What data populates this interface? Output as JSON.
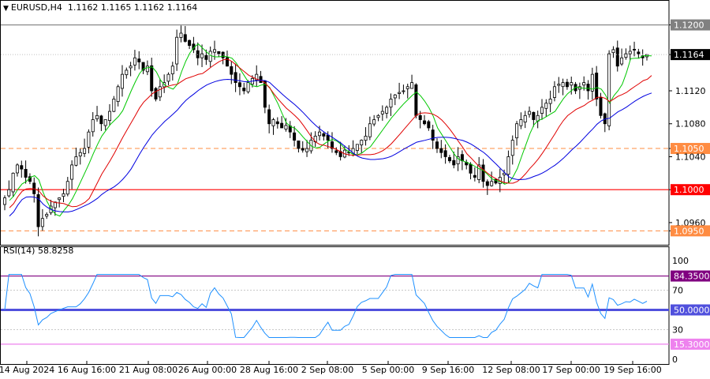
{
  "header": {
    "symbol": "EURUSD,H4",
    "ohlc": "1.1162 1.1165 1.1162 1.1164"
  },
  "colors": {
    "candle": "#000000",
    "ma_fast": "#00c800",
    "ma_mid": "#e00000",
    "ma_slow": "#0000e0",
    "level_1100": "#ff0000",
    "level_dashed": "#ff8c42",
    "level_1200": "#808080",
    "rsi_line": "#1e90ff",
    "rsi_level_high": "#800080",
    "rsi_level_mid": "#5050dd",
    "rsi_level_low": "#ee82ee",
    "price_tag_current": "#000000"
  },
  "chart_data": [
    {
      "type": "candlestick",
      "symbol": "EURUSD",
      "timeframe": "H4",
      "ylim": [
        1.0935,
        1.1213
      ],
      "y_ticks": [
        "1.1200",
        "1.1164",
        "1.1120",
        "1.1080",
        "1.1050",
        "1.1040",
        "1.1000",
        "1.0960",
        "1.0950"
      ],
      "x_ticks": [
        "14 Aug 2024",
        "16 Aug 16:00",
        "21 Aug 08:00",
        "26 Aug 00:00",
        "28 Aug 16:00",
        "2 Sep 08:00",
        "5 Sep 00:00",
        "9 Sep 16:00",
        "12 Sep 08:00",
        "17 Sep 00:00",
        "19 Sep 16:00"
      ],
      "current_price": "1.1164",
      "horizontal_levels": [
        {
          "value": 1.12,
          "label": "1.1200",
          "style": "solid"
        },
        {
          "value": 1.105,
          "label": "1.1050",
          "style": "dashed"
        },
        {
          "value": 1.1,
          "label": "1.1000",
          "style": "solid"
        },
        {
          "value": 1.095,
          "label": "1.0950",
          "style": "dashed"
        }
      ],
      "close_series": [
        1.099,
        1.1,
        1.102,
        1.103,
        1.1025,
        1.1015,
        1.101,
        1.0995,
        1.0955,
        1.0965,
        1.097,
        1.098,
        1.0985,
        1.099,
        1.0995,
        1.101,
        1.103,
        1.104,
        1.1045,
        1.105,
        1.107,
        1.1085,
        1.109,
        1.108,
        1.1085,
        1.1095,
        1.111,
        1.1125,
        1.114,
        1.1145,
        1.115,
        1.116,
        1.1155,
        1.1145,
        1.115,
        1.112,
        1.111,
        1.1125,
        1.113,
        1.114,
        1.115,
        1.1185,
        1.119,
        1.118,
        1.1175,
        1.117,
        1.116,
        1.1165,
        1.1158,
        1.1168,
        1.117,
        1.1165,
        1.116,
        1.115,
        1.114,
        1.113,
        1.1125,
        1.112,
        1.113,
        1.1135,
        1.114,
        1.113,
        1.11,
        1.108,
        1.1085,
        1.108,
        1.1075,
        1.1078,
        1.107,
        1.106,
        1.105,
        1.1048,
        1.105,
        1.106,
        1.1065,
        1.107,
        1.1065,
        1.106,
        1.105,
        1.1045,
        1.104,
        1.1048,
        1.1045,
        1.105,
        1.1055,
        1.106,
        1.1065,
        1.108,
        1.1085,
        1.109,
        1.1095,
        1.11,
        1.111,
        1.1115,
        1.1118,
        1.112,
        1.1125,
        1.113,
        1.109,
        1.1085,
        1.108,
        1.1075,
        1.106,
        1.105,
        1.1045,
        1.104,
        1.1035,
        1.103,
        1.104,
        1.1035,
        1.103,
        1.102,
        1.1015,
        1.103,
        1.101,
        1.1005,
        1.101,
        1.1008,
        1.1015,
        1.102,
        1.104,
        1.106,
        1.108,
        1.1085,
        1.109,
        1.1095,
        1.1085,
        1.109,
        1.11,
        1.1105,
        1.111,
        1.1125,
        1.1128,
        1.113,
        1.1125,
        1.113,
        1.112,
        1.1125,
        1.113,
        1.112,
        1.114,
        1.111,
        1.109,
        1.108,
        1.1165,
        1.117,
        1.115,
        1.116,
        1.1165,
        1.1168,
        1.117,
        1.1165,
        1.116,
        1.1164
      ],
      "moving_averages": [
        {
          "color": "#00c800",
          "period": "fast"
        },
        {
          "color": "#e00000",
          "period": "medium"
        },
        {
          "color": "#0000e0",
          "period": "slow"
        }
      ]
    },
    {
      "type": "line",
      "title": "RSI(14) 58.8258",
      "ylim": [
        0,
        100
      ],
      "y_ticks": [
        "100",
        "70",
        "50",
        "30",
        "0"
      ],
      "levels": [
        {
          "value": 84.35,
          "label": "84.3500"
        },
        {
          "value": 50.0,
          "label": "50.0000"
        },
        {
          "value": 15.3,
          "label": "15.3000"
        }
      ],
      "current_value": 58.8258
    }
  ]
}
